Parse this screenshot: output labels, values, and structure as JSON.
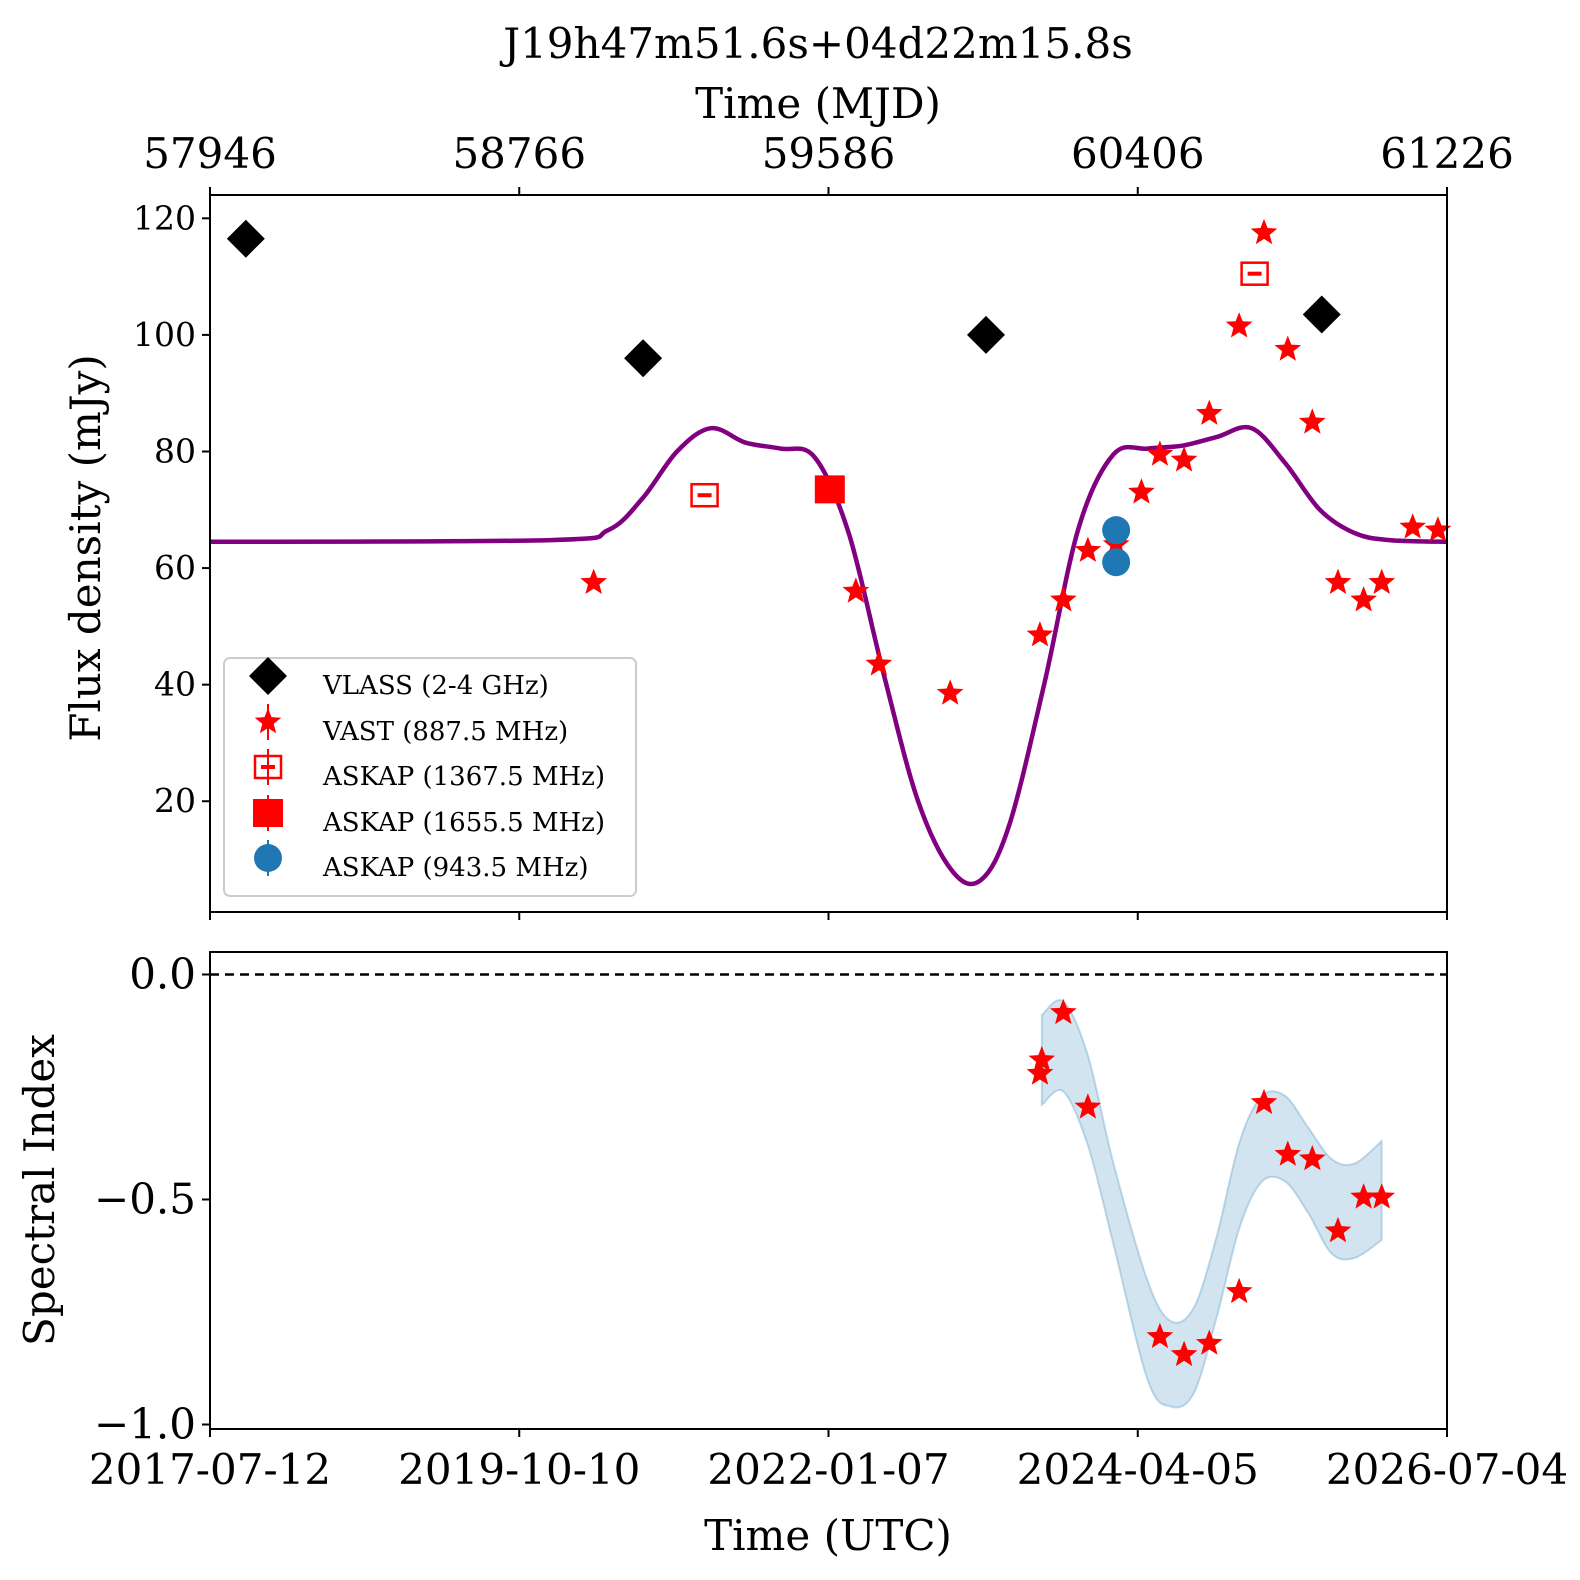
{
  "chart_data": [
    {
      "type": "scatter",
      "title": "J19h47m51.6s+04d22m15.8s",
      "xlabel_top": "Time (MJD)",
      "xticks_top": [
        "57946",
        "58766",
        "59586",
        "60406",
        "61226"
      ],
      "ylabel": "Flux density (mJy)",
      "yticks": [
        "20",
        "40",
        "60",
        "80",
        "100",
        "120"
      ],
      "ylim": [
        1,
        124
      ],
      "xlim": [
        "2017-07-12",
        "2026-07-04"
      ],
      "grid": false,
      "legend_position": "lower-left",
      "series": [
        {
          "name": "VLASS (2-4 GHz)",
          "marker": "diamond",
          "color": "#000000",
          "points": [
            {
              "x": "2017-10-15",
              "y": 116.5
            },
            {
              "x": "2020-09-02",
              "y": 96
            },
            {
              "x": "2023-02-28",
              "y": 100
            },
            {
              "x": "2025-08-06",
              "y": 103.5
            }
          ]
        },
        {
          "name": "VAST (887.5 MHz)",
          "marker": "star",
          "color": "#ff0000",
          "points": [
            {
              "x": "2020-04-24",
              "y": 57.5
            },
            {
              "x": "2022-03-20",
              "y": 56
            },
            {
              "x": "2022-05-20",
              "y": 43.5
            },
            {
              "x": "2022-11-25",
              "y": 38.5
            },
            {
              "x": "2023-07-21",
              "y": 48.5
            },
            {
              "x": "2023-09-21",
              "y": 54.5
            },
            {
              "x": "2023-11-25",
              "y": 63
            },
            {
              "x": "2024-02-08",
              "y": 64
            },
            {
              "x": "2024-04-15",
              "y": 73
            },
            {
              "x": "2024-06-03",
              "y": 79.5
            },
            {
              "x": "2024-08-06",
              "y": 78.5
            },
            {
              "x": "2024-10-12",
              "y": 86.5
            },
            {
              "x": "2024-12-30",
              "y": 101.5
            },
            {
              "x": "2025-03-06",
              "y": 117.5
            },
            {
              "x": "2025-05-08",
              "y": 97.5
            },
            {
              "x": "2025-07-12",
              "y": 85
            },
            {
              "x": "2025-09-18",
              "y": 57.5
            },
            {
              "x": "2025-11-25",
              "y": 54.5
            },
            {
              "x": "2026-01-12",
              "y": 57.5
            },
            {
              "x": "2026-04-04",
              "y": 67
            },
            {
              "x": "2026-06-10",
              "y": 66.5
            }
          ]
        },
        {
          "name": "ASKAP (1367.5 MHz)",
          "marker": "square-open",
          "color": "#ff0000",
          "points": [
            {
              "x": "2021-02-12",
              "y": 72.5
            },
            {
              "x": "2025-02-09",
              "y": 110.5
            }
          ]
        },
        {
          "name": "ASKAP (1655.5 MHz)",
          "marker": "square",
          "color": "#ff0000",
          "points": [
            {
              "x": "2022-01-10",
              "y": 73.5
            }
          ]
        },
        {
          "name": "ASKAP (943.5 MHz)",
          "marker": "circle",
          "color": "#1f77b4",
          "points": [
            {
              "x": "2024-02-08",
              "y": 66.5
            },
            {
              "x": "2024-02-08",
              "y": 61
            }
          ]
        }
      ],
      "model_curve": {
        "color": "#800080",
        "x": [
          "2017-07-12",
          "2020-01-01",
          "2020-06-01",
          "2020-09-01",
          "2020-12-01",
          "2021-03-01",
          "2021-06-01",
          "2021-09-01",
          "2021-12-01",
          "2022-03-01",
          "2022-06-01",
          "2022-09-01",
          "2022-12-01",
          "2023-02-15",
          "2023-05-01",
          "2023-08-01",
          "2023-11-01",
          "2024-02-01",
          "2024-05-01",
          "2024-08-01",
          "2024-11-01",
          "2025-02-01",
          "2025-05-01",
          "2025-08-01",
          "2025-11-01",
          "2026-02-01",
          "2026-07-04"
        ],
        "y": [
          64.5,
          64.8,
          66.5,
          72,
          80,
          84,
          81.5,
          80.5,
          79,
          66,
          42,
          20,
          8,
          6.5,
          16,
          40,
          67,
          79.5,
          80.5,
          81,
          82.5,
          84,
          78,
          70,
          66,
          64.8,
          64.5
        ]
      }
    },
    {
      "type": "scatter",
      "xlabel": "Time (UTC)",
      "ylabel": "Spectral Index",
      "xticks": [
        "2017-07-12",
        "2019-10-10",
        "2022-01-07",
        "2024-04-05",
        "2026-07-04"
      ],
      "yticks": [
        "0.0",
        "−0.5",
        "−1.0"
      ],
      "ylim": [
        -1.01,
        0.05
      ],
      "xlim": [
        "2017-07-12",
        "2026-07-04"
      ],
      "grid": false,
      "reference_line": {
        "y": 0.0,
        "style": "dashed",
        "color": "#000000"
      },
      "series": [
        {
          "marker": "star",
          "color": "#ff0000",
          "points": [
            {
              "x": "2023-07-21",
              "y": -0.22
            },
            {
              "x": "2023-07-26",
              "y": -0.19
            },
            {
              "x": "2023-09-21",
              "y": -0.085
            },
            {
              "x": "2023-11-25",
              "y": -0.295
            },
            {
              "x": "2024-06-03",
              "y": -0.805
            },
            {
              "x": "2024-08-06",
              "y": -0.845
            },
            {
              "x": "2024-10-12",
              "y": -0.82
            },
            {
              "x": "2024-12-30",
              "y": -0.705
            },
            {
              "x": "2025-03-06",
              "y": -0.285
            },
            {
              "x": "2025-05-08",
              "y": -0.4
            },
            {
              "x": "2025-07-12",
              "y": -0.41
            },
            {
              "x": "2025-09-18",
              "y": -0.57
            },
            {
              "x": "2025-11-25",
              "y": -0.495
            },
            {
              "x": "2026-01-12",
              "y": -0.495
            }
          ]
        }
      ],
      "model_band": {
        "color": "#1f77b4",
        "x": [
          "2023-07-26",
          "2023-09-21",
          "2023-11-25",
          "2024-02-01",
          "2024-05-01",
          "2024-07-01",
          "2024-09-01",
          "2024-11-01",
          "2025-01-01",
          "2025-03-01",
          "2025-05-01",
          "2025-07-01",
          "2025-09-01",
          "2025-11-01",
          "2026-01-12"
        ],
        "lower": [
          -0.29,
          -0.26,
          -0.38,
          -0.6,
          -0.9,
          -0.96,
          -0.93,
          -0.76,
          -0.56,
          -0.46,
          -0.46,
          -0.53,
          -0.62,
          -0.63,
          -0.59
        ],
        "upper": [
          -0.09,
          -0.06,
          -0.18,
          -0.42,
          -0.68,
          -0.77,
          -0.74,
          -0.58,
          -0.37,
          -0.27,
          -0.27,
          -0.34,
          -0.41,
          -0.42,
          -0.37
        ]
      }
    }
  ]
}
